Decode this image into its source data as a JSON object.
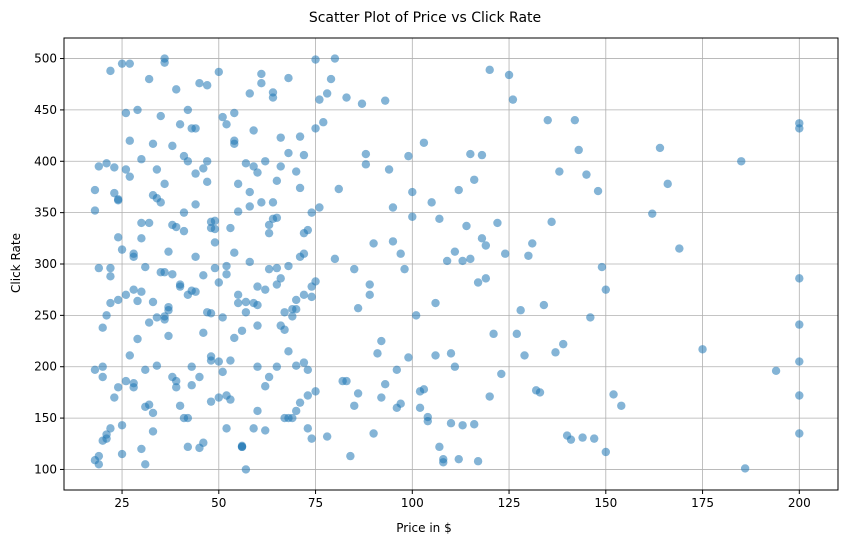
{
  "chart_data": {
    "type": "scatter",
    "title": "Scatter Plot of Price vs Click Rate",
    "xlabel": "Price in $",
    "ylabel": "Click Rate",
    "xlim": [
      10,
      210
    ],
    "ylim": [
      80,
      520
    ],
    "xticks": [
      25,
      50,
      75,
      100,
      125,
      150,
      175,
      200
    ],
    "yticks": [
      100,
      150,
      200,
      250,
      300,
      350,
      400,
      450,
      500
    ],
    "grid": true,
    "marker_color": "#1f77b4",
    "marker_alpha": 0.55,
    "background_color": "#ffffff",
    "points": {
      "x": [
        18,
        19,
        19,
        20,
        21,
        22,
        23,
        24,
        25,
        26,
        27,
        28,
        29,
        30,
        31,
        32,
        33,
        34,
        35,
        36,
        37,
        38,
        39,
        40,
        41,
        42,
        43,
        44,
        45,
        46,
        47,
        48,
        49,
        50,
        51,
        52,
        53,
        54,
        55,
        56,
        57,
        58,
        59,
        60,
        61,
        62,
        63,
        64,
        65,
        66,
        67,
        68,
        69,
        70,
        71,
        72,
        73,
        74,
        75,
        76,
        18,
        20,
        21,
        22,
        24,
        25,
        27,
        28,
        29,
        31,
        32,
        33,
        35,
        36,
        37,
        39,
        40,
        41,
        43,
        44,
        45,
        47,
        48,
        49,
        51,
        52,
        53,
        55,
        56,
        57,
        59,
        60,
        61,
        63,
        64,
        65,
        67,
        68,
        69,
        71,
        72,
        73,
        75,
        76,
        20,
        22,
        19,
        21,
        23,
        25,
        26,
        28,
        30,
        31,
        33,
        34,
        36,
        38,
        39,
        41,
        42,
        44,
        46,
        47,
        49,
        50,
        52,
        54,
        55,
        57,
        58,
        60,
        62,
        63,
        65,
        66,
        68,
        70,
        71,
        73,
        74,
        24,
        18,
        20,
        22,
        24,
        26,
        28,
        30,
        32,
        34,
        36,
        38,
        40,
        42,
        44,
        46,
        48,
        50,
        52,
        54,
        56,
        58,
        60,
        62,
        64,
        66,
        68,
        70,
        72,
        74,
        30,
        19,
        23,
        27,
        31,
        35,
        39,
        43,
        47,
        51,
        55,
        59,
        63,
        67,
        71,
        75,
        25,
        33,
        41,
        49,
        57,
        65,
        73,
        29,
        37,
        45,
        53,
        61,
        69,
        21,
        26,
        32,
        37,
        43,
        48,
        54,
        59,
        65,
        70,
        75,
        28,
        34,
        40,
        46,
        52,
        58,
        64,
        70,
        36,
        42,
        48,
        60,
        72,
        18,
        22,
        27,
        33,
        38,
        44,
        50,
        56,
        62,
        68,
        74,
        24,
        30,
        36,
        42,
        48,
        54,
        60,
        66,
        72,
        78,
        80,
        83,
        85,
        87,
        88,
        90,
        92,
        94,
        95,
        97,
        98,
        100,
        102,
        104,
        105,
        107,
        108,
        110,
        112,
        113,
        115,
        117,
        118,
        120,
        122,
        79,
        82,
        86,
        89,
        91,
        93,
        96,
        99,
        101,
        103,
        106,
        109,
        111,
        114,
        116,
        119,
        121,
        124,
        77,
        81,
        84,
        88,
        92,
        95,
        99,
        102,
        106,
        110,
        113,
        117,
        120,
        123,
        78,
        85,
        90,
        97,
        103,
        108,
        115,
        119,
        80,
        86,
        93,
        100,
        107,
        112,
        118,
        83,
        89,
        96,
        104,
        111,
        116,
        126,
        128,
        130,
        133,
        135,
        138,
        140,
        142,
        145,
        147,
        150,
        152,
        125,
        131,
        137,
        143,
        149,
        127,
        134,
        141,
        146,
        129,
        136,
        144,
        150,
        132,
        139,
        148,
        154,
        162,
        164,
        166,
        169,
        175,
        185,
        186,
        194,
        200,
        200,
        200,
        200,
        200,
        200,
        200
      ],
      "y": [
        372,
        395,
        113,
        128,
        130,
        262,
        394,
        362,
        115,
        270,
        495,
        180,
        450,
        120,
        297,
        340,
        417,
        392,
        360,
        500,
        258,
        338,
        180,
        278,
        150,
        400,
        432,
        358,
        121,
        289,
        474,
        210,
        334,
        487,
        195,
        290,
        168,
        420,
        378,
        235,
        263,
        370,
        395,
        260,
        476,
        138,
        330,
        462,
        200,
        423,
        253,
        481,
        150,
        390,
        307,
        204,
        140,
        278,
        499,
        355,
        352,
        190,
        398,
        488,
        180,
        143,
        420,
        307,
        264,
        197,
        480,
        155,
        444,
        246,
        312,
        470,
        162,
        350,
        274,
        432,
        190,
        380,
        166,
        296,
        248,
        436,
        335,
        270,
        122,
        398,
        430,
        240,
        485,
        190,
        360,
        296,
        150,
        408,
        256,
        374,
        330,
        172,
        283,
        460,
        238,
        296,
        296,
        250,
        369,
        495,
        392,
        310,
        402,
        161,
        367,
        248,
        292,
        415,
        186,
        332,
        450,
        273,
        126,
        400,
        342,
        282,
        140,
        417,
        351,
        253,
        466,
        200,
        275,
        338,
        381,
        240,
        150,
        265,
        424,
        333,
        268,
        326,
        197,
        200,
        288,
        265,
        447,
        184,
        273,
        163,
        364,
        496,
        190,
        436,
        270,
        307,
        393,
        341,
        170,
        298,
        447,
        122,
        356,
        278,
        181,
        467,
        395,
        298,
        256,
        406,
        350,
        340,
        105,
        170,
        385,
        105,
        292,
        336,
        200,
        253,
        443,
        262,
        140,
        295,
        236,
        165,
        432,
        314,
        137,
        405,
        321,
        100,
        345,
        197,
        227,
        255,
        476,
        206,
        360,
        249,
        134,
        186,
        243,
        230,
        182,
        252,
        311,
        262,
        280,
        157,
        176,
        275,
        201,
        280,
        233,
        172,
        302,
        344,
        201,
        378,
        122,
        335,
        389,
        270,
        109,
        140,
        211,
        263,
        290,
        388,
        205,
        123,
        400,
        215,
        130,
        363,
        325,
        249,
        150,
        206,
        228,
        157,
        286,
        310,
        466,
        500,
        462,
        295,
        456,
        407,
        135,
        170,
        392,
        322,
        164,
        295,
        370,
        176,
        151,
        360,
        344,
        107,
        213,
        110,
        303,
        305,
        108,
        406,
        171,
        340,
        480,
        186,
        174,
        280,
        213,
        459,
        197,
        405,
        250,
        178,
        262,
        303,
        312,
        337,
        144,
        286,
        232,
        310,
        438,
        373,
        113,
        397,
        225,
        355,
        209,
        160,
        211,
        145,
        143,
        282,
        489,
        193,
        132,
        162,
        320,
        310,
        418,
        110,
        407,
        318,
        305,
        257,
        183,
        346,
        122,
        372,
        325,
        186,
        270,
        160,
        147,
        200,
        382,
        460,
        255,
        308,
        175,
        440,
        390,
        133,
        440,
        387,
        130,
        117,
        173,
        484,
        320,
        214,
        411,
        297,
        232,
        260,
        129,
        248,
        211,
        341,
        131,
        275,
        177,
        222,
        371,
        162,
        349,
        413,
        378,
        315,
        217,
        400,
        101,
        196,
        437,
        432,
        286,
        241,
        205,
        172,
        135
      ]
    }
  }
}
